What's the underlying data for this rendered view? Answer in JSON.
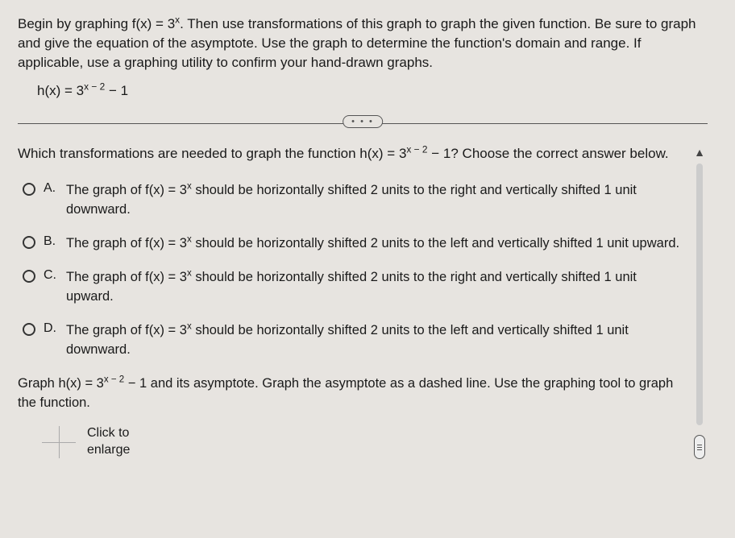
{
  "colors": {
    "background": "#e7e4e0",
    "text": "#1a1a1a",
    "divider": "#555555",
    "pill_bg": "#e7e4e0",
    "scroll_track": "#cccccc",
    "scroll_handle_bg": "#eeeeee",
    "mini_grid": "#aaaaaa"
  },
  "intro": {
    "line1": "Begin by graphing f(x) = 3",
    "exp1": "x",
    "line1b": ". Then use transformations of this graph to graph the given function. Be sure to graph and give the equation of the asymptote. Use the graph to determine the function's domain and range. If applicable, use a graphing utility to confirm your hand-drawn graphs."
  },
  "equation": {
    "lhs": "h(x) = 3",
    "exp": "x − 2",
    "tail": " − 1"
  },
  "pill_label": "• • •",
  "question": {
    "pre": "Which transformations are needed to graph the function h(x) = 3",
    "exp": "x − 2",
    "post": " − 1? Choose the correct answer below."
  },
  "options": [
    {
      "letter": "A.",
      "pre": "The graph of f(x) = 3",
      "exp": "x",
      "post": " should be horizontally shifted 2 units to the right and vertically shifted 1 unit downward."
    },
    {
      "letter": "B.",
      "pre": "The graph of f(x) = 3",
      "exp": "x",
      "post": " should be horizontally shifted 2 units to the left and vertically shifted 1 unit upward."
    },
    {
      "letter": "C.",
      "pre": "The graph of f(x) = 3",
      "exp": "x",
      "post": " should be horizontally shifted 2 units to the right and vertically shifted 1 unit upward."
    },
    {
      "letter": "D.",
      "pre": "The graph of f(x) = 3",
      "exp": "x",
      "post": " should be horizontally shifted 2 units to the left and vertically shifted 1 unit downward."
    }
  ],
  "graph_instruction": {
    "pre": "Graph h(x) = 3",
    "exp": "x − 2",
    "post": " − 1 and its asymptote. Graph the asymptote as a dashed line. Use the graphing tool to graph the function."
  },
  "enlarge": {
    "line1": "Click to",
    "line2": "enlarge"
  }
}
